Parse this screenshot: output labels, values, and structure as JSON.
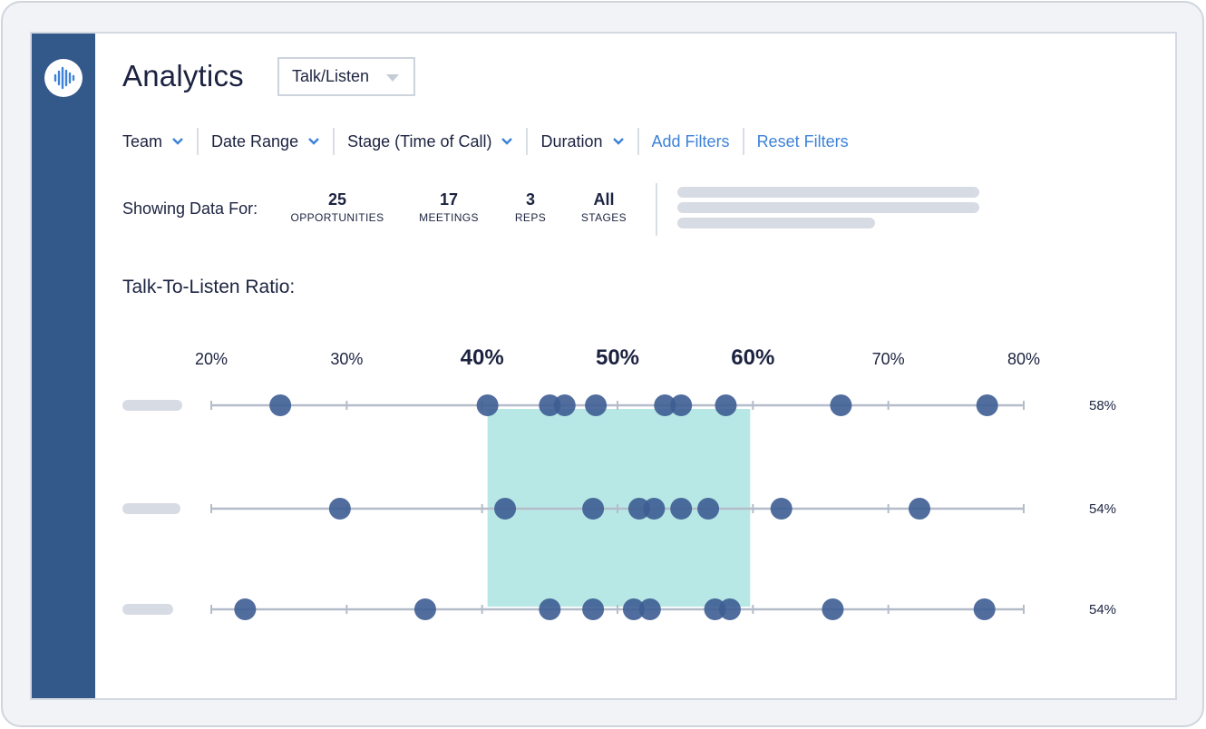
{
  "app": {
    "title": "Analytics",
    "view_select": {
      "selected": "Talk/Listen"
    },
    "logo_icon": "sound-wave-icon"
  },
  "filters": {
    "items": [
      "Team",
      "Date Range",
      "Stage (Time of Call)",
      "Duration"
    ],
    "add_filters": "Add Filters",
    "reset_filters": "Reset Filters"
  },
  "summary": {
    "label": "Showing Data For:",
    "stats": [
      {
        "value": "25",
        "label": "OPPORTUNITIES"
      },
      {
        "value": "17",
        "label": "MEETINGS"
      },
      {
        "value": "3",
        "label": "REPS"
      },
      {
        "value": "All",
        "label": "STAGES"
      }
    ]
  },
  "section_title": "Talk-To-Listen Ratio:",
  "colors": {
    "sidebar": "#33588a",
    "accent_link": "#3d82d8",
    "dot": "#3d5d93",
    "range_band": "#b8e8e5",
    "axis_line": "#b4bcc9"
  },
  "chart_data": {
    "type": "scatter",
    "x_ticks": [
      "20%",
      "30%",
      "40%",
      "50%",
      "60%",
      "70%",
      "80%"
    ],
    "emphasized_ticks": [
      "40%",
      "50%",
      "60%"
    ],
    "xlim": [
      20,
      80
    ],
    "highlight_range": [
      40.4,
      59.8
    ],
    "rows": [
      {
        "points": [
          25.1,
          40.4,
          45.0,
          46.1,
          48.4,
          53.5,
          54.7,
          58.0,
          66.5,
          77.3
        ],
        "value_label": "58%"
      },
      {
        "points": [
          29.5,
          41.7,
          48.2,
          51.6,
          52.7,
          54.7,
          56.7,
          62.1,
          72.3
        ],
        "value_label": "54%"
      },
      {
        "points": [
          22.5,
          35.8,
          45.0,
          48.2,
          51.2,
          52.4,
          57.2,
          58.3,
          65.9,
          77.1
        ],
        "value_label": "54%"
      }
    ]
  }
}
